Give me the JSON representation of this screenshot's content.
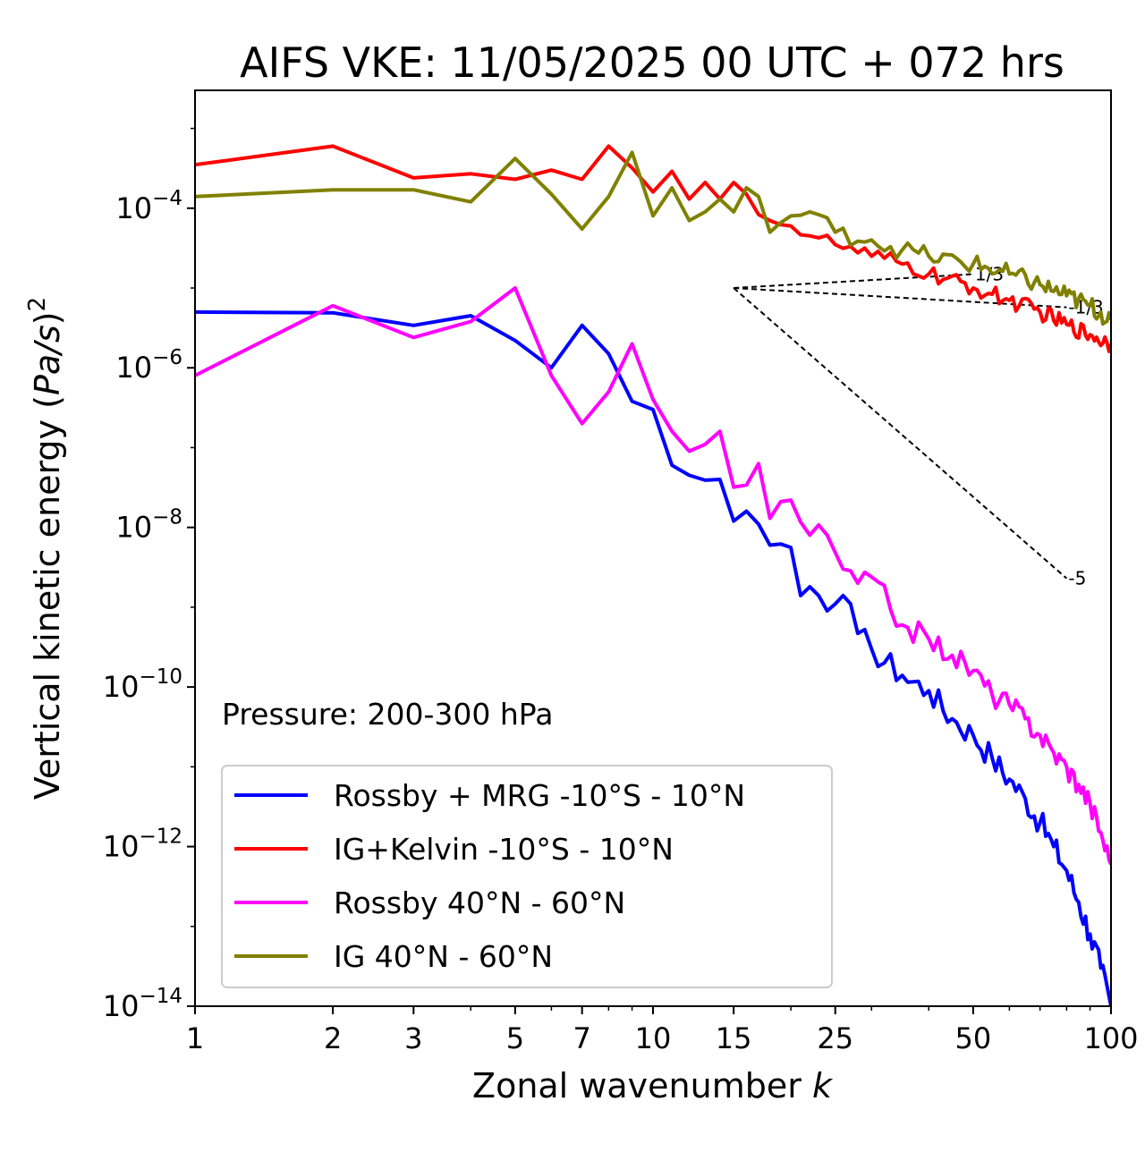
{
  "chart_data": {
    "type": "line",
    "title": "AIFS VKE: 11/05/2025 00 UTC + 072 hrs",
    "xlabel": "Zonal wavenumber k",
    "ylabel": "Vertical kinetic energy (Pa/s)^2",
    "xscale": "log",
    "yscale": "log",
    "xlim": [
      1,
      100
    ],
    "ylim": [
      1e-14,
      0.003
    ],
    "xticks": [
      1,
      2,
      3,
      5,
      7,
      10,
      15,
      25,
      50,
      100
    ],
    "xtick_labels": [
      "1",
      "2",
      "3",
      "5",
      "7",
      "10",
      "15",
      "25",
      "50",
      "100"
    ],
    "yticks": [
      {
        "value": 0.0001,
        "base": "10",
        "exp": "−4"
      },
      {
        "value": 1e-06,
        "base": "10",
        "exp": "−6"
      },
      {
        "value": 1e-08,
        "base": "10",
        "exp": "−8"
      },
      {
        "value": 1e-10,
        "base": "10",
        "exp": "−10"
      },
      {
        "value": 1e-12,
        "base": "10",
        "exp": "−12"
      },
      {
        "value": 1e-14,
        "base": "10",
        "exp": "−14"
      }
    ],
    "annotation": "Pressure: 200-300 hPa",
    "legend_position": "lower-left",
    "reference_lines": [
      {
        "label": "1/3",
        "slope": 0.3333,
        "x": [
          15,
          50
        ],
        "y": [
          1e-05,
          1.49e-05
        ]
      },
      {
        "label": "-1/3",
        "slope": -0.3333,
        "x": [
          15,
          80
        ],
        "y": [
          1e-05,
          5.73e-06
        ]
      },
      {
        "label": "-5",
        "slope": -5,
        "x": [
          15,
          80
        ],
        "y": [
          1e-05,
          2.3e-09
        ]
      }
    ],
    "series": [
      {
        "name": "Rossby + MRG -10°S - 10°N",
        "color": "#0000ff",
        "anchors": [
          [
            1,
            5e-06
          ],
          [
            2,
            4.9e-06
          ],
          [
            3,
            3.4e-06
          ],
          [
            4,
            4.5e-06
          ],
          [
            5,
            2.2e-06
          ],
          [
            6,
            1e-06
          ],
          [
            7,
            3.4e-06
          ],
          [
            8,
            1.5e-06
          ],
          [
            9,
            3.8e-07
          ],
          [
            10,
            3e-07
          ],
          [
            11,
            6e-08
          ],
          [
            12,
            4.5e-08
          ],
          [
            13,
            3.9e-08
          ],
          [
            14,
            4e-08
          ],
          [
            15,
            1.2e-08
          ],
          [
            16,
            1.6e-08
          ],
          [
            17,
            1.1e-08
          ],
          [
            18,
            6e-09
          ],
          [
            19,
            6.2e-09
          ],
          [
            20,
            5.6e-09
          ],
          [
            21,
            1.4e-09
          ],
          [
            22,
            1.8e-09
          ],
          [
            23,
            1.4e-09
          ],
          [
            24,
            9e-10
          ],
          [
            25,
            1.1e-09
          ],
          [
            26,
            1.4e-09
          ],
          [
            28,
            4.7e-10
          ],
          [
            30,
            3e-10
          ],
          [
            35,
            1.4e-10
          ],
          [
            40,
            9e-11
          ],
          [
            45,
            4e-11
          ],
          [
            50,
            2.5e-11
          ],
          [
            55,
            1.3e-11
          ],
          [
            60,
            7e-12
          ],
          [
            65,
            4e-12
          ],
          [
            70,
            2e-12
          ],
          [
            75,
            1e-12
          ],
          [
            80,
            5e-13
          ],
          [
            85,
            2e-13
          ],
          [
            90,
            8e-14
          ],
          [
            95,
            3e-14
          ],
          [
            100,
            1e-14
          ]
        ],
        "noise": 0.35
      },
      {
        "name": "IG+Kelvin -10°S - 10°N",
        "color": "#ff0000",
        "anchors": [
          [
            1,
            0.00035
          ],
          [
            2,
            0.0006
          ],
          [
            3,
            0.00024
          ],
          [
            4,
            0.00027
          ],
          [
            5,
            0.00023
          ],
          [
            6,
            0.0003
          ],
          [
            7,
            0.00023
          ],
          [
            8,
            0.0006
          ],
          [
            9,
            0.00032
          ],
          [
            10,
            0.00016
          ],
          [
            11,
            0.00029
          ],
          [
            12,
            0.00013
          ],
          [
            13,
            0.00021
          ],
          [
            14,
            0.00013
          ],
          [
            15,
            0.00021
          ],
          [
            16,
            0.00015
          ],
          [
            18,
            7e-05
          ],
          [
            20,
            6e-05
          ],
          [
            22,
            4.5e-05
          ],
          [
            25,
            3.5e-05
          ],
          [
            30,
            2.5e-05
          ],
          [
            35,
            2e-05
          ],
          [
            40,
            1.5e-05
          ],
          [
            50,
            1e-05
          ],
          [
            60,
            7e-06
          ],
          [
            70,
            5e-06
          ],
          [
            80,
            3.5e-06
          ],
          [
            90,
            2.6e-06
          ],
          [
            100,
            2e-06
          ]
        ],
        "noise": 0.22
      },
      {
        "name": "Rossby 40°N - 60°N",
        "color": "#ff00ff",
        "anchors": [
          [
            1,
            8e-07
          ],
          [
            2,
            6e-06
          ],
          [
            3,
            2.4e-06
          ],
          [
            4,
            3.8e-06
          ],
          [
            5,
            1e-05
          ],
          [
            6,
            8e-07
          ],
          [
            7,
            2e-07
          ],
          [
            8,
            5e-07
          ],
          [
            9,
            2e-06
          ],
          [
            10,
            4e-07
          ],
          [
            11,
            1.6e-07
          ],
          [
            12,
            9e-08
          ],
          [
            13,
            1.1e-07
          ],
          [
            14,
            1.6e-07
          ],
          [
            15,
            3.2e-08
          ],
          [
            16,
            3.4e-08
          ],
          [
            17,
            6.3e-08
          ],
          [
            18,
            1.3e-08
          ],
          [
            19,
            2.1e-08
          ],
          [
            20,
            2.2e-08
          ],
          [
            22,
            8e-09
          ],
          [
            24,
            8e-09
          ],
          [
            26,
            3e-09
          ],
          [
            28,
            2e-09
          ],
          [
            30,
            2.4e-09
          ],
          [
            35,
            6e-10
          ],
          [
            40,
            4e-10
          ],
          [
            45,
            2.5e-10
          ],
          [
            50,
            1.6e-10
          ],
          [
            55,
            8e-11
          ],
          [
            60,
            6e-11
          ],
          [
            65,
            4e-11
          ],
          [
            70,
            2.5e-11
          ],
          [
            75,
            1.5e-11
          ],
          [
            80,
            1e-11
          ],
          [
            85,
            6e-12
          ],
          [
            90,
            3.5e-12
          ],
          [
            95,
            1.5e-12
          ],
          [
            100,
            6e-13
          ]
        ],
        "noise": 0.3
      },
      {
        "name": "IG 40°N - 60°N",
        "color": "#808000",
        "anchors": [
          [
            1,
            0.00014
          ],
          [
            2,
            0.00017
          ],
          [
            3,
            0.00017
          ],
          [
            4,
            0.00012
          ],
          [
            5,
            0.00042
          ],
          [
            6,
            0.00015
          ],
          [
            7,
            5.5e-05
          ],
          [
            8,
            0.00014
          ],
          [
            9,
            0.0005
          ],
          [
            10,
            8e-05
          ],
          [
            11,
            0.00018
          ],
          [
            12,
            7e-05
          ],
          [
            13,
            9e-05
          ],
          [
            14,
            0.00013
          ],
          [
            15,
            9e-05
          ],
          [
            16,
            0.00018
          ],
          [
            17,
            0.00014
          ],
          [
            18,
            5e-05
          ],
          [
            20,
            8e-05
          ],
          [
            22,
            9e-05
          ],
          [
            25,
            5e-05
          ],
          [
            30,
            4e-05
          ],
          [
            35,
            3e-05
          ],
          [
            40,
            2.5e-05
          ],
          [
            50,
            2e-05
          ],
          [
            60,
            1.5e-05
          ],
          [
            70,
            1.1e-05
          ],
          [
            80,
            8e-06
          ],
          [
            90,
            6e-06
          ],
          [
            100,
            4e-06
          ]
        ],
        "noise": 0.25
      }
    ]
  }
}
